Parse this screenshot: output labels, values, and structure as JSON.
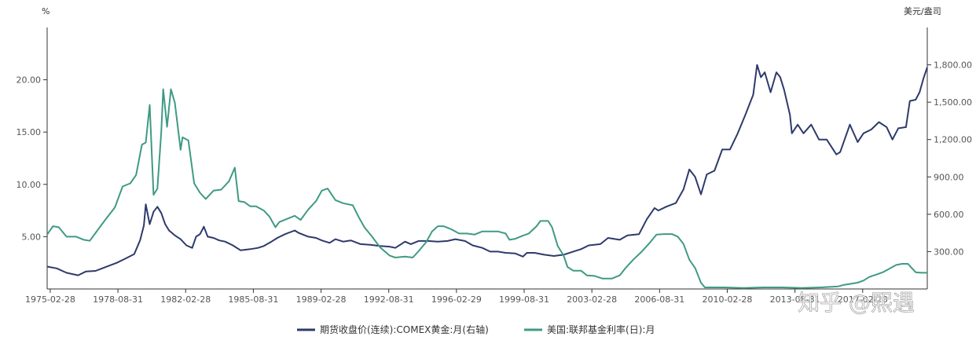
{
  "chart_data": {
    "type": "line",
    "left_axis_unit": "%",
    "right_axis_unit": "美元/盎司",
    "left_axis": {
      "min": 0,
      "max": 25,
      "ticks": [
        5,
        10,
        15,
        20
      ],
      "tick_labels": [
        "5.00",
        "10.00",
        "15.00",
        "20.00"
      ]
    },
    "right_axis": {
      "min": 0,
      "max": 2100,
      "ticks": [
        300,
        600,
        900,
        1200,
        1500,
        1800
      ],
      "tick_labels": [
        "300.00",
        "600.00",
        "900.00",
        "1,200.00",
        "1,500.00",
        "1,800.00"
      ]
    },
    "x_axis": {
      "min": 1975.0,
      "max": 2020.5,
      "ticks": [
        1975.16,
        1978.66,
        1982.16,
        1985.66,
        1989.16,
        1992.66,
        1996.16,
        1999.66,
        2003.16,
        2006.66,
        2010.16,
        2013.66,
        2017.16
      ],
      "tick_labels": [
        "1975-02-28",
        "1978-08-31",
        "1982-02-28",
        "1985-08-31",
        "1989-02-28",
        "1992-08-31",
        "1996-02-29",
        "1999-08-31",
        "2003-02-28",
        "2006-08-31",
        "2010-02-28",
        "2013-08-31",
        "2017-02-28"
      ]
    },
    "legend_position": "bottom-center",
    "grid": false,
    "series": [
      {
        "name": "期货收盘价(连续):COMEX黄金:月(右轴)",
        "axis": "right",
        "color": "#2e3a6b",
        "points": [
          [
            1975.0,
            180
          ],
          [
            1975.5,
            165
          ],
          [
            1976.0,
            130
          ],
          [
            1976.6,
            110
          ],
          [
            1977.0,
            140
          ],
          [
            1977.5,
            145
          ],
          [
            1978.0,
            175
          ],
          [
            1978.6,
            210
          ],
          [
            1979.0,
            240
          ],
          [
            1979.5,
            280
          ],
          [
            1979.8,
            390
          ],
          [
            1980.0,
            510
          ],
          [
            1980.1,
            680
          ],
          [
            1980.3,
            520
          ],
          [
            1980.5,
            620
          ],
          [
            1980.7,
            660
          ],
          [
            1980.9,
            610
          ],
          [
            1981.1,
            520
          ],
          [
            1981.3,
            470
          ],
          [
            1981.6,
            430
          ],
          [
            1981.9,
            400
          ],
          [
            1982.2,
            350
          ],
          [
            1982.5,
            330
          ],
          [
            1982.7,
            420
          ],
          [
            1982.9,
            440
          ],
          [
            1983.1,
            500
          ],
          [
            1983.3,
            420
          ],
          [
            1983.6,
            410
          ],
          [
            1983.9,
            390
          ],
          [
            1984.2,
            380
          ],
          [
            1984.6,
            350
          ],
          [
            1985.0,
            310
          ],
          [
            1985.5,
            320
          ],
          [
            1985.9,
            330
          ],
          [
            1986.2,
            345
          ],
          [
            1986.6,
            380
          ],
          [
            1986.9,
            410
          ],
          [
            1987.3,
            440
          ],
          [
            1987.8,
            470
          ],
          [
            1988.0,
            450
          ],
          [
            1988.5,
            420
          ],
          [
            1988.9,
            410
          ],
          [
            1989.2,
            390
          ],
          [
            1989.6,
            370
          ],
          [
            1989.9,
            400
          ],
          [
            1990.3,
            380
          ],
          [
            1990.7,
            390
          ],
          [
            1991.2,
            360
          ],
          [
            1991.7,
            355
          ],
          [
            1992.2,
            345
          ],
          [
            1992.7,
            340
          ],
          [
            1993.0,
            330
          ],
          [
            1993.5,
            380
          ],
          [
            1993.8,
            360
          ],
          [
            1994.2,
            385
          ],
          [
            1994.7,
            385
          ],
          [
            1995.2,
            380
          ],
          [
            1995.7,
            385
          ],
          [
            1996.1,
            400
          ],
          [
            1996.6,
            385
          ],
          [
            1997.0,
            350
          ],
          [
            1997.5,
            330
          ],
          [
            1997.9,
            300
          ],
          [
            1998.3,
            300
          ],
          [
            1998.7,
            290
          ],
          [
            1999.2,
            285
          ],
          [
            1999.6,
            260
          ],
          [
            1999.8,
            290
          ],
          [
            2000.2,
            290
          ],
          [
            2000.7,
            275
          ],
          [
            2001.2,
            265
          ],
          [
            2001.7,
            275
          ],
          [
            2002.2,
            300
          ],
          [
            2002.6,
            320
          ],
          [
            2003.0,
            350
          ],
          [
            2003.6,
            360
          ],
          [
            2004.0,
            410
          ],
          [
            2004.6,
            395
          ],
          [
            2005.0,
            430
          ],
          [
            2005.6,
            440
          ],
          [
            2006.0,
            560
          ],
          [
            2006.4,
            650
          ],
          [
            2006.6,
            630
          ],
          [
            2007.0,
            660
          ],
          [
            2007.5,
            690
          ],
          [
            2007.9,
            800
          ],
          [
            2008.2,
            960
          ],
          [
            2008.5,
            900
          ],
          [
            2008.8,
            760
          ],
          [
            2009.1,
            920
          ],
          [
            2009.5,
            950
          ],
          [
            2009.9,
            1120
          ],
          [
            2010.3,
            1120
          ],
          [
            2010.7,
            1250
          ],
          [
            2011.1,
            1400
          ],
          [
            2011.5,
            1560
          ],
          [
            2011.7,
            1800
          ],
          [
            2011.9,
            1700
          ],
          [
            2012.1,
            1740
          ],
          [
            2012.4,
            1580
          ],
          [
            2012.7,
            1740
          ],
          [
            2012.9,
            1700
          ],
          [
            2013.1,
            1600
          ],
          [
            2013.4,
            1400
          ],
          [
            2013.5,
            1250
          ],
          [
            2013.8,
            1320
          ],
          [
            2014.1,
            1250
          ],
          [
            2014.5,
            1320
          ],
          [
            2014.9,
            1200
          ],
          [
            2015.3,
            1200
          ],
          [
            2015.8,
            1080
          ],
          [
            2016.0,
            1100
          ],
          [
            2016.5,
            1320
          ],
          [
            2016.9,
            1180
          ],
          [
            2017.2,
            1250
          ],
          [
            2017.6,
            1280
          ],
          [
            2018.0,
            1340
          ],
          [
            2018.4,
            1300
          ],
          [
            2018.7,
            1200
          ],
          [
            2019.0,
            1290
          ],
          [
            2019.4,
            1300
          ],
          [
            2019.6,
            1510
          ],
          [
            2019.9,
            1520
          ],
          [
            2020.1,
            1580
          ],
          [
            2020.3,
            1690
          ],
          [
            2020.5,
            1780
          ]
        ]
      },
      {
        "name": "美国:联邦基金利率(日):月",
        "axis": "left",
        "color": "#3f9a84",
        "points": [
          [
            1975.0,
            5.2
          ],
          [
            1975.3,
            6.0
          ],
          [
            1975.6,
            5.9
          ],
          [
            1976.0,
            5.0
          ],
          [
            1976.5,
            5.0
          ],
          [
            1976.9,
            4.7
          ],
          [
            1977.2,
            4.6
          ],
          [
            1977.6,
            5.6
          ],
          [
            1978.0,
            6.6
          ],
          [
            1978.5,
            7.8
          ],
          [
            1978.9,
            9.8
          ],
          [
            1979.3,
            10.1
          ],
          [
            1979.6,
            10.9
          ],
          [
            1979.9,
            13.8
          ],
          [
            1980.1,
            14.0
          ],
          [
            1980.3,
            17.6
          ],
          [
            1980.5,
            9.0
          ],
          [
            1980.7,
            9.6
          ],
          [
            1980.9,
            15.0
          ],
          [
            1981.0,
            19.1
          ],
          [
            1981.2,
            15.5
          ],
          [
            1981.4,
            19.1
          ],
          [
            1981.6,
            17.8
          ],
          [
            1981.9,
            13.3
          ],
          [
            1982.0,
            14.5
          ],
          [
            1982.3,
            14.2
          ],
          [
            1982.6,
            10.1
          ],
          [
            1982.9,
            9.2
          ],
          [
            1983.2,
            8.6
          ],
          [
            1983.6,
            9.4
          ],
          [
            1984.0,
            9.5
          ],
          [
            1984.4,
            10.3
          ],
          [
            1984.7,
            11.6
          ],
          [
            1984.9,
            8.4
          ],
          [
            1985.2,
            8.3
          ],
          [
            1985.5,
            7.9
          ],
          [
            1985.8,
            7.9
          ],
          [
            1986.2,
            7.5
          ],
          [
            1986.5,
            6.9
          ],
          [
            1986.8,
            5.9
          ],
          [
            1987.0,
            6.4
          ],
          [
            1987.4,
            6.7
          ],
          [
            1987.8,
            7.0
          ],
          [
            1988.1,
            6.6
          ],
          [
            1988.5,
            7.6
          ],
          [
            1988.9,
            8.4
          ],
          [
            1989.2,
            9.4
          ],
          [
            1989.5,
            9.6
          ],
          [
            1989.9,
            8.5
          ],
          [
            1990.3,
            8.2
          ],
          [
            1990.8,
            8.0
          ],
          [
            1991.1,
            6.9
          ],
          [
            1991.4,
            5.9
          ],
          [
            1991.8,
            5.0
          ],
          [
            1992.2,
            4.0
          ],
          [
            1992.7,
            3.2
          ],
          [
            1993.0,
            3.0
          ],
          [
            1993.5,
            3.1
          ],
          [
            1993.9,
            3.0
          ],
          [
            1994.2,
            3.6
          ],
          [
            1994.6,
            4.5
          ],
          [
            1994.9,
            5.5
          ],
          [
            1995.2,
            6.0
          ],
          [
            1995.5,
            6.0
          ],
          [
            1995.9,
            5.7
          ],
          [
            1996.3,
            5.3
          ],
          [
            1996.7,
            5.3
          ],
          [
            1997.1,
            5.2
          ],
          [
            1997.5,
            5.5
          ],
          [
            1997.9,
            5.5
          ],
          [
            1998.3,
            5.5
          ],
          [
            1998.7,
            5.3
          ],
          [
            1998.9,
            4.7
          ],
          [
            1999.2,
            4.8
          ],
          [
            1999.6,
            5.1
          ],
          [
            1999.9,
            5.3
          ],
          [
            2000.3,
            6.0
          ],
          [
            2000.5,
            6.5
          ],
          [
            2000.9,
            6.5
          ],
          [
            2001.1,
            5.9
          ],
          [
            2001.4,
            4.1
          ],
          [
            2001.7,
            3.2
          ],
          [
            2001.9,
            2.1
          ],
          [
            2002.2,
            1.75
          ],
          [
            2002.6,
            1.75
          ],
          [
            2002.9,
            1.3
          ],
          [
            2003.3,
            1.25
          ],
          [
            2003.7,
            1.0
          ],
          [
            2004.2,
            1.0
          ],
          [
            2004.6,
            1.3
          ],
          [
            2004.9,
            2.0
          ],
          [
            2005.3,
            2.8
          ],
          [
            2005.7,
            3.5
          ],
          [
            2006.1,
            4.3
          ],
          [
            2006.5,
            5.2
          ],
          [
            2006.9,
            5.25
          ],
          [
            2007.3,
            5.25
          ],
          [
            2007.6,
            5.0
          ],
          [
            2007.9,
            4.3
          ],
          [
            2008.2,
            2.8
          ],
          [
            2008.5,
            2.0
          ],
          [
            2008.8,
            0.6
          ],
          [
            2009.0,
            0.15
          ],
          [
            2010.0,
            0.15
          ],
          [
            2011.0,
            0.1
          ],
          [
            2012.0,
            0.15
          ],
          [
            2013.0,
            0.15
          ],
          [
            2014.0,
            0.1
          ],
          [
            2015.0,
            0.15
          ],
          [
            2015.9,
            0.25
          ],
          [
            2016.2,
            0.4
          ],
          [
            2016.9,
            0.6
          ],
          [
            2017.2,
            0.8
          ],
          [
            2017.5,
            1.15
          ],
          [
            2017.9,
            1.4
          ],
          [
            2018.2,
            1.6
          ],
          [
            2018.5,
            1.9
          ],
          [
            2018.9,
            2.3
          ],
          [
            2019.2,
            2.4
          ],
          [
            2019.5,
            2.4
          ],
          [
            2019.7,
            2.0
          ],
          [
            2019.9,
            1.6
          ],
          [
            2020.2,
            1.55
          ],
          [
            2020.5,
            1.55
          ]
        ]
      }
    ]
  },
  "watermark": {
    "text": "知乎 @熙遇"
  }
}
